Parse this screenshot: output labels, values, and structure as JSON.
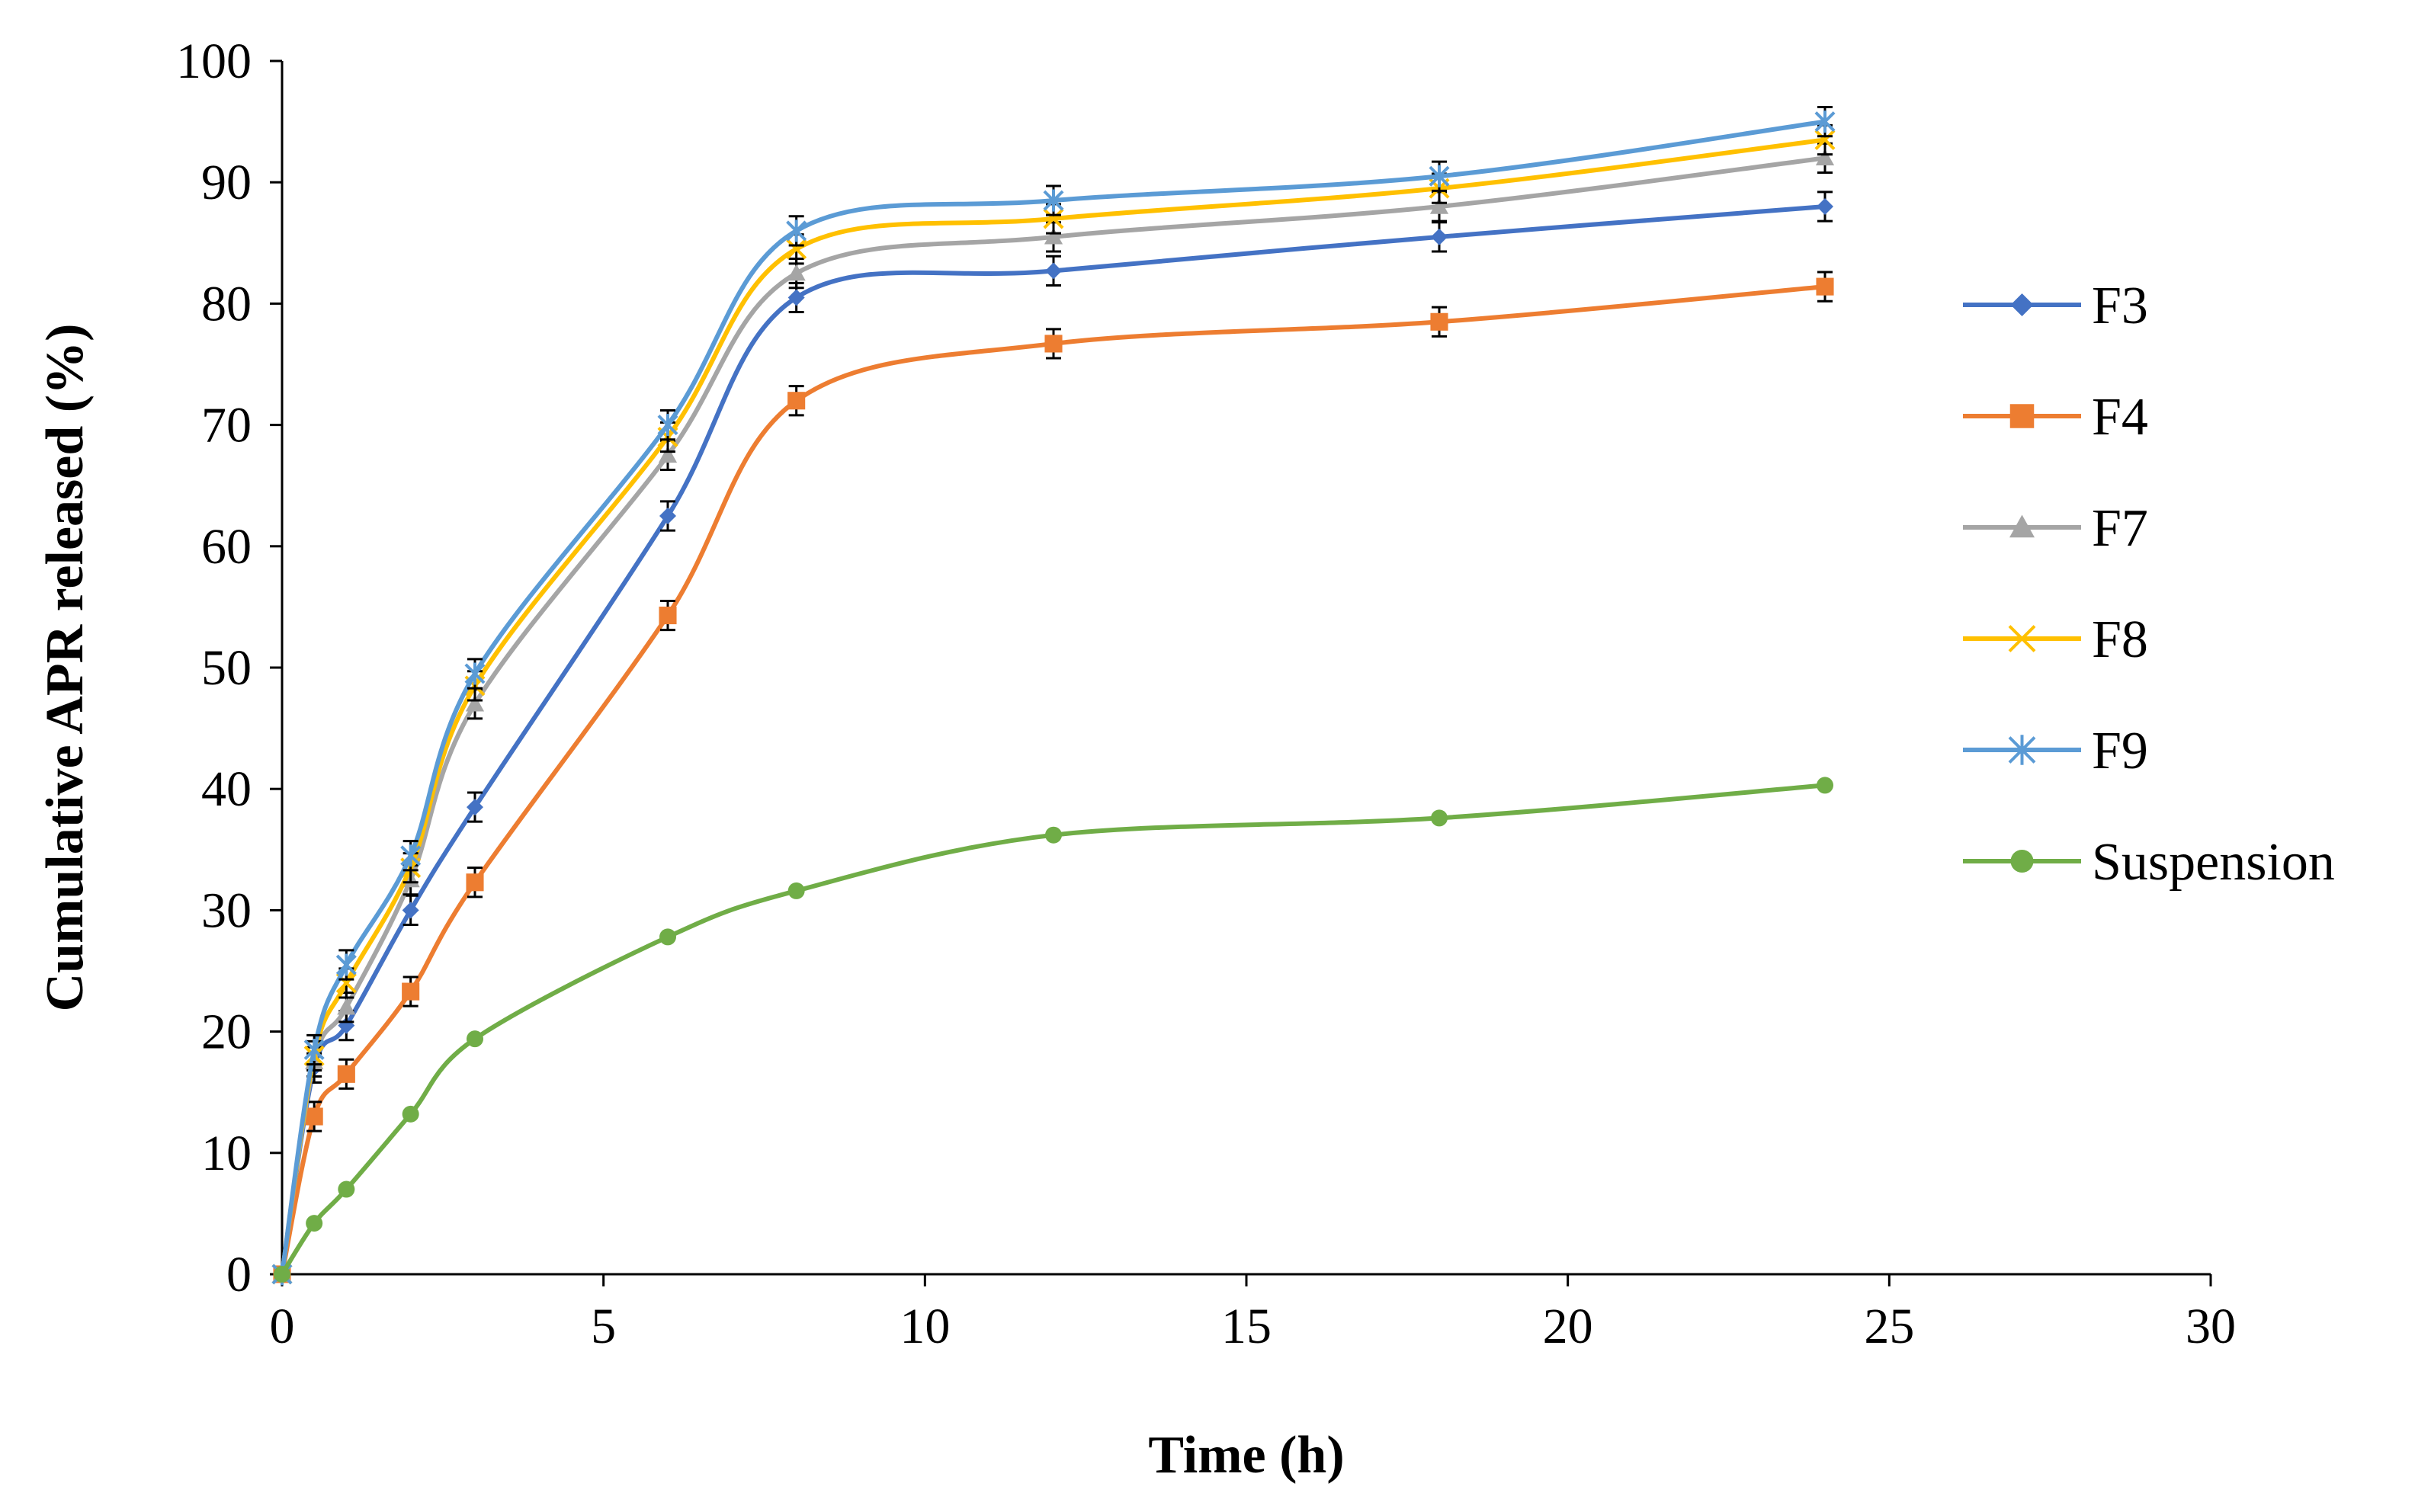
{
  "chart_data": {
    "type": "line",
    "title": "",
    "xlabel": "Time (h)",
    "ylabel": "Cumulative APR released (%)",
    "xlim": [
      0,
      30
    ],
    "ylim": [
      0,
      100
    ],
    "xticks": [
      0,
      5,
      10,
      15,
      20,
      25,
      30
    ],
    "yticks": [
      0,
      10,
      20,
      30,
      40,
      50,
      60,
      70,
      80,
      90,
      100
    ],
    "grid": false,
    "legend_position": "right",
    "x": [
      0,
      0.5,
      1,
      2,
      3,
      6,
      8,
      12,
      18,
      24
    ],
    "series": [
      {
        "name": "F3",
        "color": "#4472C4",
        "marker": "diamond",
        "values": [
          0,
          17,
          20.5,
          30,
          38.5,
          62.5,
          80.5,
          82.7,
          85.5,
          88
        ]
      },
      {
        "name": "F4",
        "color": "#ED7D31",
        "marker": "square",
        "values": [
          0,
          13,
          16.5,
          23.3,
          32.3,
          54.3,
          72,
          76.7,
          78.5,
          81.4
        ]
      },
      {
        "name": "F7",
        "color": "#A5A5A5",
        "marker": "triangle",
        "values": [
          0,
          17.5,
          22,
          32.5,
          47,
          67.5,
          82.5,
          85.5,
          88,
          92
        ]
      },
      {
        "name": "F8",
        "color": "#FFC000",
        "marker": "x",
        "values": [
          0,
          18,
          24,
          33.5,
          48.5,
          69,
          84.5,
          87,
          89.5,
          93.5
        ]
      },
      {
        "name": "F9",
        "color": "#5B9BD5",
        "marker": "star",
        "values": [
          0,
          18.5,
          25.5,
          34.5,
          49.5,
          70,
          86,
          88.5,
          90.5,
          95
        ]
      },
      {
        "name": "Suspension",
        "color": "#70AD47",
        "marker": "circle",
        "values": [
          0,
          4.2,
          7,
          13.2,
          19.4,
          27.8,
          31.6,
          36.2,
          37.6,
          40.3
        ]
      }
    ]
  }
}
